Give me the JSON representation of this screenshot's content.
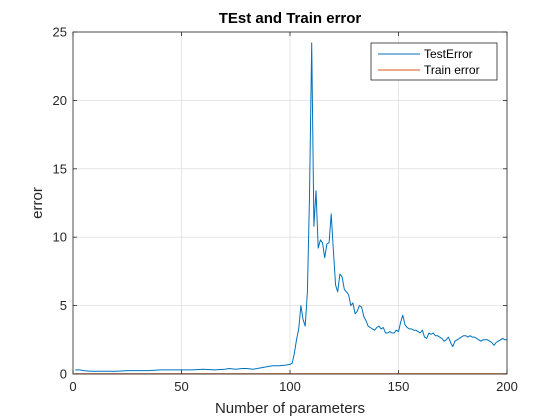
{
  "chart_data": {
    "type": "line",
    "title": "TEst and Train error",
    "xlabel": "Number of parameters",
    "ylabel": "error",
    "xlim": [
      0,
      200
    ],
    "ylim": [
      0,
      25
    ],
    "xticks": [
      0,
      50,
      100,
      150,
      200
    ],
    "yticks": [
      0,
      5,
      10,
      15,
      20,
      25
    ],
    "grid": true,
    "legend_position": "top-right",
    "series": [
      {
        "name": "TestError",
        "color": "#0072BD",
        "x": [
          1,
          3,
          5,
          8,
          10,
          15,
          20,
          25,
          30,
          35,
          40,
          45,
          50,
          55,
          60,
          65,
          70,
          72,
          75,
          78,
          80,
          83,
          85,
          88,
          90,
          92,
          95,
          98,
          100,
          101,
          102,
          103,
          104,
          105,
          106,
          107,
          108,
          109,
          110,
          111,
          112,
          113,
          114,
          115,
          116,
          117,
          118,
          119,
          120,
          121,
          122,
          123,
          124,
          125,
          126,
          127,
          128,
          129,
          130,
          131,
          132,
          133,
          134,
          135,
          136,
          137,
          138,
          139,
          140,
          141,
          142,
          143,
          144,
          145,
          146,
          147,
          148,
          149,
          150,
          151,
          152,
          153,
          154,
          155,
          156,
          157,
          158,
          159,
          160,
          161,
          162,
          163,
          164,
          165,
          166,
          167,
          168,
          169,
          170,
          171,
          172,
          173,
          174,
          175,
          176,
          177,
          178,
          179,
          180,
          181,
          182,
          183,
          184,
          185,
          186,
          187,
          188,
          189,
          190,
          191,
          192,
          193,
          194,
          195,
          196,
          197,
          198,
          199,
          200
        ],
        "y": [
          0.3,
          0.3,
          0.25,
          0.2,
          0.2,
          0.2,
          0.2,
          0.25,
          0.25,
          0.25,
          0.3,
          0.3,
          0.3,
          0.3,
          0.35,
          0.3,
          0.35,
          0.4,
          0.35,
          0.4,
          0.4,
          0.35,
          0.4,
          0.5,
          0.55,
          0.6,
          0.6,
          0.65,
          0.7,
          0.8,
          1.5,
          2.5,
          3.3,
          5.0,
          4.0,
          3.5,
          6.0,
          13.0,
          24.2,
          10.8,
          13.4,
          9.2,
          9.8,
          9.6,
          8.5,
          9.5,
          9.6,
          11.7,
          9.0,
          6.5,
          6.0,
          7.3,
          7.1,
          6.2,
          6.0,
          5.8,
          5.0,
          5.2,
          4.4,
          4.6,
          5.0,
          4.9,
          4.2,
          3.9,
          3.5,
          3.4,
          3.3,
          3.2,
          3.4,
          3.5,
          3.3,
          3.4,
          3.0,
          3.0,
          3.1,
          3.0,
          3.0,
          3.2,
          3.1,
          3.8,
          4.3,
          3.6,
          3.4,
          3.3,
          3.3,
          3.2,
          3.2,
          3.1,
          3.0,
          3.2,
          2.7,
          2.6,
          3.0,
          2.9,
          3.0,
          2.8,
          2.8,
          2.7,
          2.6,
          2.4,
          2.5,
          2.7,
          2.3,
          2.0,
          2.4,
          2.5,
          2.6,
          2.7,
          2.8,
          2.8,
          2.7,
          2.8,
          2.7,
          2.7,
          2.6,
          2.5,
          2.4,
          2.5,
          2.5,
          2.5,
          2.4,
          2.3,
          2.1,
          2.3,
          2.4,
          2.5,
          2.6,
          2.5,
          2.5
        ]
      },
      {
        "name": "Train error",
        "color": "#D95319",
        "x": [
          1,
          200
        ],
        "y": [
          0.02,
          0.02
        ]
      }
    ]
  }
}
